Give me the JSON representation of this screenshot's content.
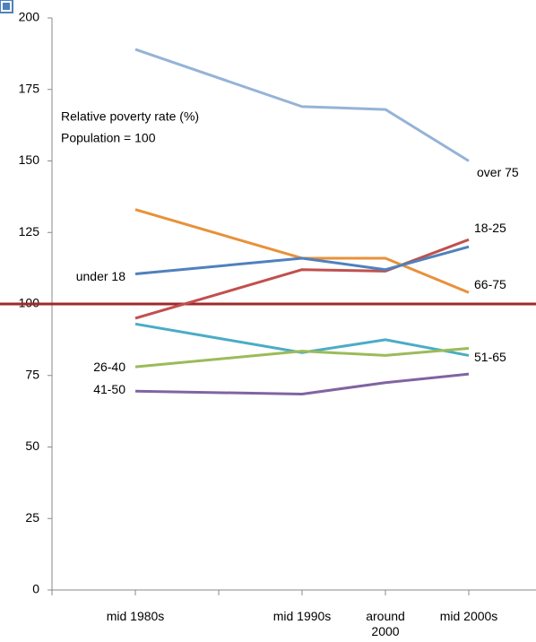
{
  "chart_data": {
    "type": "line",
    "annotations": [
      "Relative poverty rate (%)",
      "Population = 100"
    ],
    "categories": [
      null,
      "mid 1980s",
      null,
      "mid 1990s",
      "around 2000",
      "mid 2000s"
    ],
    "series": [
      {
        "name": "over 75",
        "color": "#95b3d7",
        "values": [
          null,
          189,
          null,
          169,
          168,
          150
        ]
      },
      {
        "name": "18-25",
        "color": "#c0504d",
        "values": [
          null,
          95,
          null,
          112,
          111.5,
          122.5
        ]
      },
      {
        "name": "66-75",
        "color": "#e8913a",
        "values": [
          null,
          133,
          null,
          116,
          116,
          104
        ]
      },
      {
        "name": "under 18",
        "color": "#4f81bd",
        "values": [
          null,
          110.5,
          null,
          116,
          112,
          120
        ]
      },
      {
        "name": "51-65",
        "color": "#4bacc6",
        "values": [
          null,
          93,
          null,
          83,
          87.5,
          82
        ]
      },
      {
        "name": "26-40",
        "color": "#9bbb59",
        "values": [
          null,
          78,
          null,
          83.5,
          82,
          84.5
        ]
      },
      {
        "name": "41-50",
        "color": "#8064a2",
        "values": [
          null,
          69.5,
          null,
          68.5,
          72.5,
          75.5
        ]
      }
    ],
    "reference_line": {
      "value": 100,
      "color": "#a0282a"
    },
    "ylim": [
      0,
      200
    ],
    "yticks": [
      0,
      25,
      50,
      75,
      100,
      125,
      150,
      175,
      200
    ],
    "grid": false
  }
}
